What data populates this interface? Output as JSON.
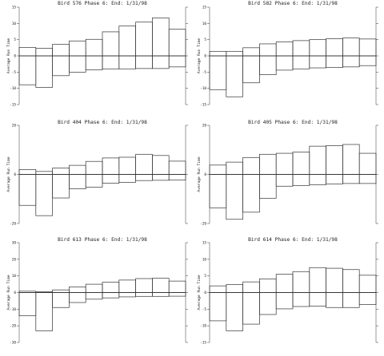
{
  "chart_data": [
    {
      "type": "bar",
      "title": "Bird 576 Phase 6:  End: 1/31/98",
      "ylabel": "Average Run Time",
      "ylim": [
        -15,
        15
      ],
      "yticks": [
        -15,
        -10,
        -5,
        0,
        5,
        10,
        15
      ],
      "series": [
        {
          "values": [
            2.6,
            2.3,
            3.6,
            4.6,
            5.1,
            7.4,
            9.2,
            10.4,
            11.7,
            8.2
          ]
        },
        {
          "values": [
            -8.9,
            -9.7,
            -6.1,
            -5.0,
            -4.3,
            -4.0,
            -4.0,
            -3.9,
            -3.9,
            -3.4
          ]
        }
      ]
    },
    {
      "type": "bar",
      "title": "Bird 582 Phase 6:  End: 1/31/98",
      "ylabel": "Average Run Time",
      "ylim": [
        -15,
        15
      ],
      "yticks": [
        -15,
        -10,
        -5,
        0,
        5,
        10,
        15
      ],
      "series": [
        {
          "values": [
            1.4,
            1.4,
            2.5,
            3.7,
            4.3,
            4.7,
            5.0,
            5.3,
            5.5,
            5.2
          ]
        },
        {
          "values": [
            -10.4,
            -12.6,
            -8.3,
            -5.8,
            -4.4,
            -4.0,
            -3.7,
            -3.6,
            -3.4,
            -3.0
          ]
        }
      ]
    },
    {
      "type": "bar",
      "title": "Bird 404 Phase 6:  End: 1/31/98",
      "ylabel": "Average Run Time",
      "ylim": [
        -20,
        20
      ],
      "yticks": [
        -20,
        0,
        20
      ],
      "series": [
        {
          "values": [
            2.0,
            1.2,
            2.6,
            3.7,
            5.3,
            6.7,
            7.0,
            8.2,
            7.7,
            5.4
          ]
        },
        {
          "values": [
            -12.6,
            -16.8,
            -9.6,
            -5.9,
            -5.2,
            -3.6,
            -3.2,
            -2.5,
            -2.4,
            -2.3
          ]
        }
      ]
    },
    {
      "type": "bar",
      "title": "Bird 405 Phase 6:  End: 1/31/98",
      "ylabel": "Average Run Time",
      "ylim": [
        -20,
        20
      ],
      "yticks": [
        -20,
        0,
        20
      ],
      "series": [
        {
          "values": [
            3.8,
            5.0,
            6.9,
            8.2,
            8.6,
            9.1,
            11.5,
            11.7,
            12.2,
            8.6
          ]
        },
        {
          "values": [
            -13.6,
            -18.3,
            -15.4,
            -9.7,
            -4.8,
            -4.5,
            -4.2,
            -3.9,
            -3.7,
            -3.7
          ]
        }
      ]
    },
    {
      "type": "bar",
      "title": "Bird 613 Phase 6:  End: 1/31/98",
      "ylabel": "Average Run Time",
      "ylim": [
        -30,
        30
      ],
      "yticks": [
        -30,
        -20,
        -10,
        0,
        10,
        20,
        30
      ],
      "series": [
        {
          "values": [
            0.8,
            0.4,
            1.6,
            3.4,
            5.0,
            6.2,
            7.5,
            8.4,
            8.6,
            6.9
          ]
        },
        {
          "values": [
            -14.0,
            -23.0,
            -9.0,
            -6.0,
            -4.0,
            -3.2,
            -2.6,
            -2.3,
            -2.3,
            -2.2
          ]
        }
      ]
    },
    {
      "type": "bar",
      "title": "Bird 614 Phase 6:  End: 1/31/98",
      "ylabel": "Average Run Time",
      "ylim": [
        -15,
        15
      ],
      "yticks": [
        -15,
        -10,
        -5,
        0,
        5,
        10,
        15
      ],
      "series": [
        {
          "values": [
            2.0,
            2.4,
            3.2,
            4.1,
            5.5,
            6.3,
            7.5,
            7.3,
            6.9,
            5.2
          ]
        },
        {
          "values": [
            -8.5,
            -11.5,
            -9.5,
            -6.6,
            -4.9,
            -4.2,
            -4.1,
            -4.5,
            -4.5,
            -3.6
          ]
        }
      ]
    }
  ]
}
